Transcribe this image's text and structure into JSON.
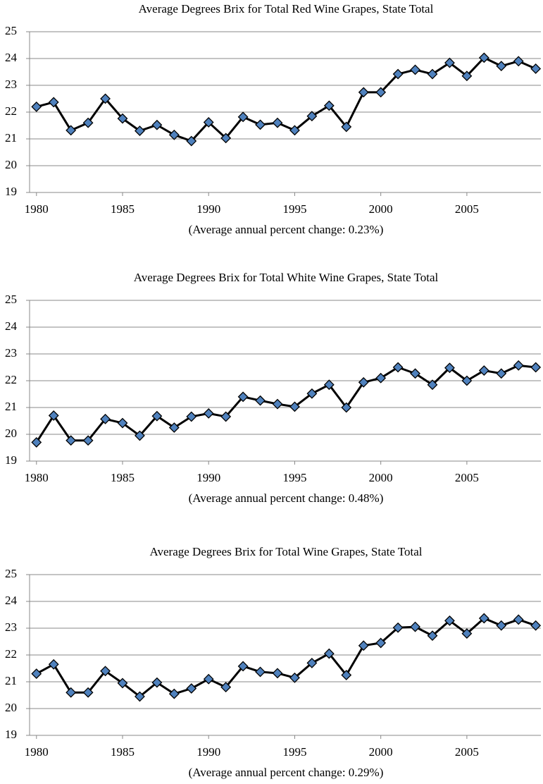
{
  "chart_data": [
    {
      "type": "line",
      "title": "Average Degrees Brix for Total Red Wine Grapes, State Total",
      "note": "(Average annual percent change:  0.23%)",
      "x": [
        1980,
        1981,
        1982,
        1983,
        1984,
        1985,
        1986,
        1987,
        1988,
        1989,
        1990,
        1991,
        1992,
        1993,
        1994,
        1995,
        1996,
        1997,
        1998,
        1999,
        2000,
        2001,
        2002,
        2003,
        2004,
        2005,
        2006,
        2007,
        2008,
        2009
      ],
      "series": [
        {
          "color": "#000000",
          "marker_color": "#4f81bd",
          "values": [
            22.2,
            22.37,
            21.32,
            21.6,
            22.5,
            21.76,
            21.3,
            21.52,
            21.15,
            20.92,
            21.62,
            21.03,
            21.82,
            21.53,
            21.6,
            21.32,
            21.85,
            22.24,
            21.45,
            22.74,
            22.74,
            23.42,
            23.58,
            23.42,
            23.84,
            23.35,
            24.03,
            23.72,
            23.9,
            23.62
          ]
        }
      ],
      "xlim": [
        1979.6,
        2009.3
      ],
      "ylim": [
        19,
        25
      ],
      "xticks": [
        1980,
        1985,
        1990,
        1995,
        2000,
        2005
      ],
      "yticks": [
        19,
        20,
        21,
        22,
        23,
        24,
        25
      ],
      "grid": true
    },
    {
      "type": "line",
      "title": "Average Degrees Brix for Total White Wine Grapes, State Total",
      "note": "(Average annual percent change:  0.48%)",
      "x": [
        1980,
        1981,
        1982,
        1983,
        1984,
        1985,
        1986,
        1987,
        1988,
        1989,
        1990,
        1991,
        1992,
        1993,
        1994,
        1995,
        1996,
        1997,
        1998,
        1999,
        2000,
        2001,
        2002,
        2003,
        2004,
        2005,
        2006,
        2007,
        2008,
        2009
      ],
      "series": [
        {
          "color": "#000000",
          "marker_color": "#4f81bd",
          "values": [
            19.7,
            20.7,
            19.77,
            19.77,
            20.57,
            20.42,
            19.95,
            20.68,
            20.25,
            20.66,
            20.78,
            20.66,
            21.4,
            21.26,
            21.13,
            21.03,
            21.52,
            21.85,
            21.0,
            21.94,
            22.1,
            22.5,
            22.27,
            21.85,
            22.48,
            22.0,
            22.38,
            22.27,
            22.57,
            22.5
          ]
        }
      ],
      "xlim": [
        1979.6,
        2009.3
      ],
      "ylim": [
        19,
        25
      ],
      "xticks": [
        1980,
        1985,
        1990,
        1995,
        2000,
        2005
      ],
      "yticks": [
        19,
        20,
        21,
        22,
        23,
        24,
        25
      ],
      "grid": true
    },
    {
      "type": "line",
      "title": "Average Degrees Brix for Total Wine Grapes, State Total",
      "note": "(Average annual percent change:  0.29%)",
      "x": [
        1980,
        1981,
        1982,
        1983,
        1984,
        1985,
        1986,
        1987,
        1988,
        1989,
        1990,
        1991,
        1992,
        1993,
        1994,
        1995,
        1996,
        1997,
        1998,
        1999,
        2000,
        2001,
        2002,
        2003,
        2004,
        2005,
        2006,
        2007,
        2008,
        2009
      ],
      "series": [
        {
          "color": "#000000",
          "marker_color": "#4f81bd",
          "values": [
            21.3,
            21.65,
            20.6,
            20.6,
            21.4,
            20.95,
            20.45,
            20.97,
            20.55,
            20.75,
            21.1,
            20.8,
            21.58,
            21.37,
            21.32,
            21.15,
            21.7,
            22.05,
            21.25,
            22.35,
            22.45,
            23.02,
            23.05,
            22.72,
            23.28,
            22.8,
            23.37,
            23.1,
            23.32,
            23.1
          ]
        }
      ],
      "xlim": [
        1979.6,
        2009.3
      ],
      "ylim": [
        19,
        25
      ],
      "xticks": [
        1980,
        1985,
        1990,
        1995,
        2000,
        2005
      ],
      "yticks": [
        19,
        20,
        21,
        22,
        23,
        24,
        25
      ],
      "grid": true
    }
  ]
}
